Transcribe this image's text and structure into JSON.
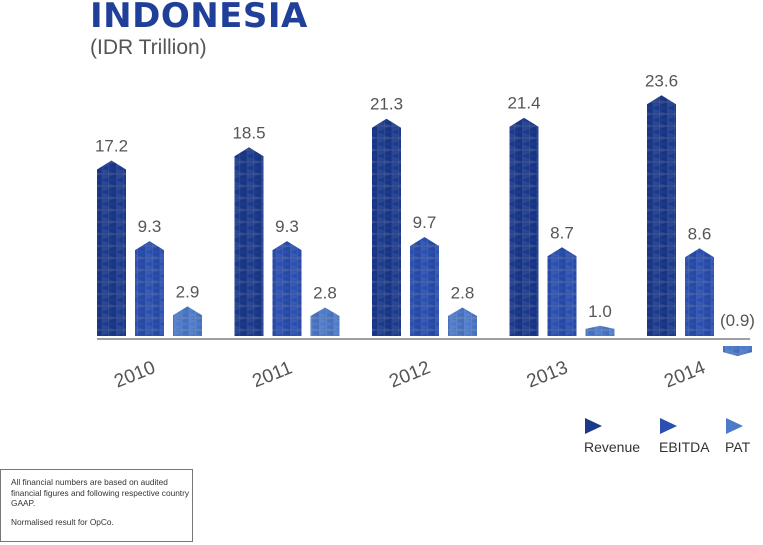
{
  "header": {
    "title": "INDONESIA",
    "subtitle": "(IDR Trillion)"
  },
  "colors": {
    "revenue": "#1b3a8c",
    "ebitda": "#2a4fb0",
    "pat": "#4d7ac9",
    "label": "#555555",
    "axis": "#666666"
  },
  "chart_data": {
    "type": "bar",
    "categories": [
      "2010",
      "2011",
      "2012",
      "2013",
      "2014"
    ],
    "series": [
      {
        "name": "Revenue",
        "values": [
          17.2,
          18.5,
          21.3,
          21.4,
          23.6
        ]
      },
      {
        "name": "EBITDA",
        "values": [
          9.3,
          9.3,
          9.7,
          8.7,
          8.6
        ]
      },
      {
        "name": "PAT",
        "values": [
          2.9,
          2.8,
          2.8,
          1.0,
          -0.9
        ]
      }
    ],
    "value_labels": [
      [
        "17.2",
        "9.3",
        "2.9"
      ],
      [
        "18.5",
        "9.3",
        "2.8"
      ],
      [
        "21.3",
        "9.7",
        "2.8"
      ],
      [
        "21.4",
        "8.7",
        "1.0"
      ],
      [
        "23.6",
        "8.6",
        "(0.9)"
      ]
    ],
    "title": "INDONESIA",
    "subtitle": "(IDR Trillion)",
    "legend_position": "bottom-right",
    "grid": false
  },
  "footnote": {
    "line1": "All financial numbers are based on audited financial figures and following respective country GAAP.",
    "line2": "Normalised result for OpCo."
  }
}
